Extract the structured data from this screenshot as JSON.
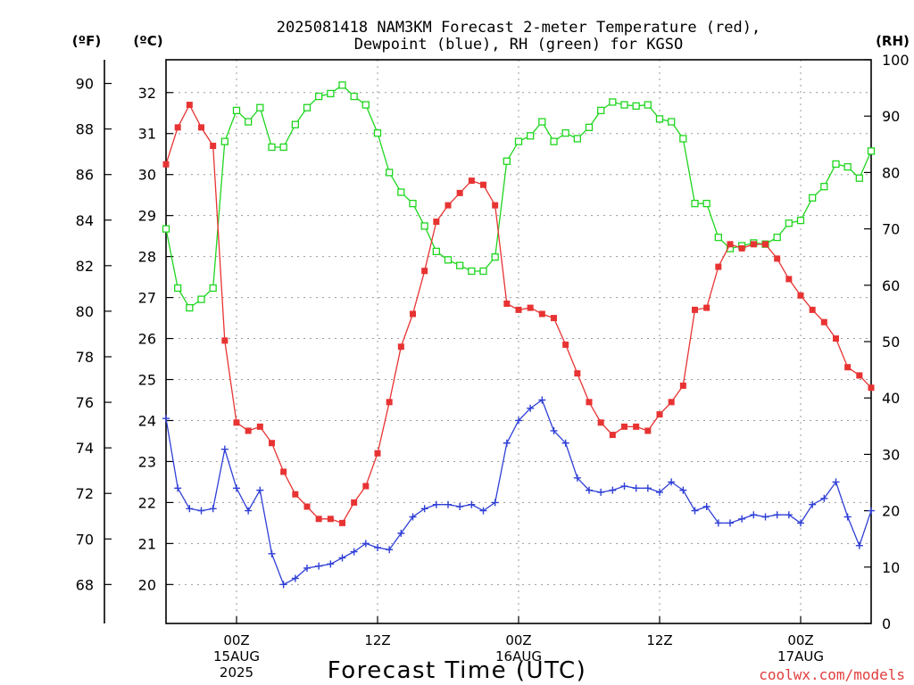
{
  "chart_data": {
    "type": "line",
    "title_line1": "2025081418 NAM3KM Forecast 2-meter Temperature (red),",
    "title_line2": "Dewpoint (blue), RH (green) for KGSO",
    "xlabel": "Forecast Time (UTC)",
    "watermark": "coolwx.com/models",
    "left_outer_unit": "(ºF)",
    "left_inner_unit": "(ºC)",
    "right_unit": "(RH)",
    "x_start_hour": -6,
    "x_end_hour": 54,
    "x_ticks": [
      {
        "hour": 0,
        "label1": "00Z",
        "label2": "15AUG",
        "label3": "2025"
      },
      {
        "hour": 12,
        "label1": "12Z"
      },
      {
        "hour": 24,
        "label1": "00Z",
        "label2": "16AUG"
      },
      {
        "hour": 36,
        "label1": "12Z"
      },
      {
        "hour": 48,
        "label1": "00Z",
        "label2": "17AUG"
      }
    ],
    "ylim_celsius": [
      19.05,
      32.8
    ],
    "celsius_ticks": [
      "20",
      "21",
      "22",
      "23",
      "24",
      "25",
      "26",
      "27",
      "28",
      "29",
      "30",
      "31",
      "32"
    ],
    "fahrenheit_ticks": [
      "68",
      "70",
      "72",
      "74",
      "76",
      "78",
      "80",
      "82",
      "84",
      "86",
      "88",
      "90"
    ],
    "rh_ticks": [
      "0",
      "10",
      "20",
      "30",
      "40",
      "50",
      "60",
      "70",
      "80",
      "90",
      "100"
    ],
    "ylim_rh": [
      0,
      100
    ],
    "grid": true,
    "series": [
      {
        "name": "2-meter Temperature",
        "unit": "C",
        "color": "#e83333",
        "marker": "filled-square",
        "values": [
          30.25,
          31.15,
          31.7,
          31.15,
          30.7,
          25.95,
          23.95,
          23.75,
          23.85,
          23.45,
          22.75,
          22.2,
          21.9,
          21.6,
          21.6,
          21.5,
          22.0,
          22.4,
          23.2,
          24.45,
          25.8,
          26.6,
          27.65,
          28.85,
          29.25,
          29.55,
          29.85,
          29.75,
          29.25,
          26.85,
          26.7,
          26.75,
          26.6,
          26.5,
          25.85,
          25.15,
          24.45,
          23.95,
          23.65,
          23.85,
          23.85,
          23.75,
          24.15,
          24.45,
          24.85,
          26.7,
          26.75,
          27.75,
          28.3,
          28.2,
          28.3,
          28.3,
          27.95,
          27.45,
          27.05,
          26.7,
          26.4,
          26.0,
          25.3,
          25.1,
          24.8
        ]
      },
      {
        "name": "Dewpoint",
        "unit": "C",
        "color": "#2f3fd6",
        "marker": "plus",
        "values": [
          24.05,
          22.35,
          21.85,
          21.8,
          21.85,
          23.3,
          22.35,
          21.8,
          22.3,
          20.75,
          20.0,
          20.15,
          20.4,
          20.45,
          20.5,
          20.65,
          20.8,
          21.0,
          20.9,
          20.85,
          21.25,
          21.65,
          21.85,
          21.95,
          21.95,
          21.9,
          21.95,
          21.8,
          22.0,
          23.45,
          24.0,
          24.3,
          24.5,
          23.75,
          23.45,
          22.6,
          22.3,
          22.25,
          22.3,
          22.4,
          22.35,
          22.35,
          22.25,
          22.5,
          22.3,
          21.8,
          21.9,
          21.5,
          21.5,
          21.6,
          21.7,
          21.65,
          21.7,
          21.7,
          21.5,
          21.95,
          22.1,
          22.5,
          21.65,
          20.95,
          21.8
        ]
      },
      {
        "name": "RH",
        "unit": "%",
        "color": "#1ed61e",
        "marker": "open-square",
        "values": [
          70.0,
          59.5,
          56.0,
          57.5,
          59.5,
          85.5,
          91.0,
          89.0,
          91.5,
          84.5,
          84.5,
          88.5,
          91.5,
          93.5,
          94.0,
          95.5,
          93.5,
          92.0,
          87.0,
          80.0,
          76.5,
          74.5,
          70.5,
          66.0,
          64.5,
          63.5,
          62.5,
          62.5,
          65.0,
          82.0,
          85.5,
          86.5,
          89.0,
          85.5,
          87.0,
          86.0,
          88.0,
          91.0,
          92.5,
          92.0,
          91.8,
          92.0,
          89.5,
          89.0,
          86.0,
          74.5,
          74.5,
          68.5,
          66.5,
          67.0,
          67.5,
          67.3,
          68.5,
          71.0,
          71.5,
          75.5,
          77.5,
          81.5,
          81.0,
          79.0,
          83.8
        ]
      }
    ]
  }
}
